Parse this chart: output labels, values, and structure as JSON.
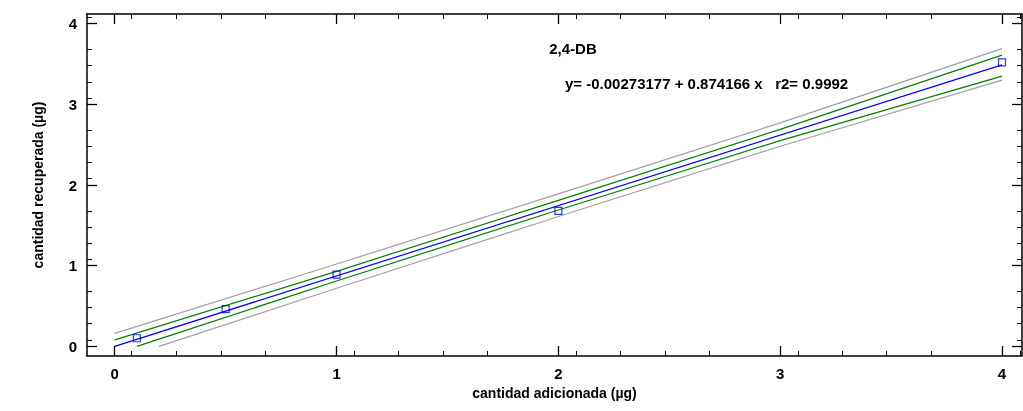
{
  "chart_data": {
    "type": "scatter",
    "title": "2,4-DB",
    "xlabel": "cantidad adicionada (µg)",
    "ylabel": "cantidad recuperada (µg)",
    "annotations": [
      "y= -0.00273177 + 0.874166 x   r2= 0.9992"
    ],
    "xlim": [
      -0.125,
      4.09
    ],
    "xticks": [
      0,
      1,
      2,
      3,
      4
    ],
    "ylim": [
      -0.12,
      4.12
    ],
    "yticks": [
      0,
      1,
      2,
      3,
      4
    ],
    "grid": false,
    "series": [
      {
        "type": "line",
        "color": "#a0a0a0",
        "marker": "none",
        "x": [
          0,
          1,
          2,
          3,
          4
        ],
        "values": [
          0.16,
          1.02,
          1.89,
          2.77,
          3.69
        ]
      },
      {
        "type": "line",
        "color": "#a0a0a0",
        "marker": "none",
        "x": [
          0.2,
          1,
          2,
          3,
          4
        ],
        "values": [
          0,
          0.72,
          1.61,
          2.48,
          3.3
        ]
      },
      {
        "type": "line",
        "color": "#008000",
        "marker": "none",
        "x": [
          0,
          1,
          2,
          3,
          4
        ],
        "values": [
          0.08,
          0.93,
          1.81,
          2.69,
          3.61
        ]
      },
      {
        "type": "line",
        "color": "#008000",
        "marker": "none",
        "x": [
          0.1,
          1,
          2,
          3,
          4
        ],
        "values": [
          0,
          0.81,
          1.69,
          2.55,
          3.35
        ]
      },
      {
        "type": "line",
        "color": "#0000ff",
        "marker": "none",
        "x": [
          0,
          4
        ],
        "values": [
          0,
          3.49
        ]
      },
      {
        "color": "#0000ff",
        "marker": "square",
        "x": [
          0.1,
          0.5,
          1,
          2,
          4
        ],
        "values": [
          0.1,
          0.46,
          0.89,
          1.68,
          3.52
        ]
      }
    ]
  }
}
